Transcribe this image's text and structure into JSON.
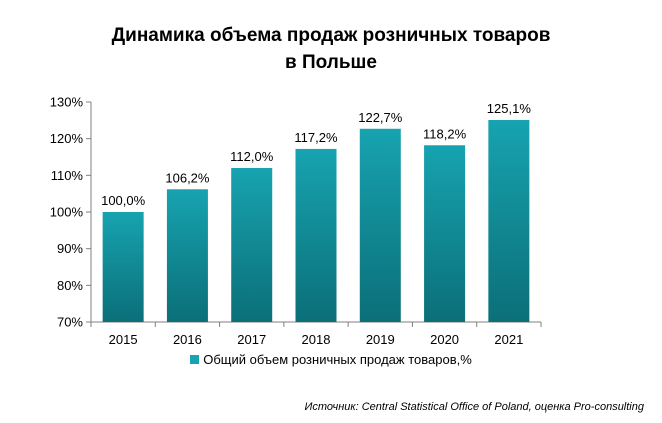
{
  "chart_data": {
    "type": "bar",
    "title_lines": [
      "Динамика объема продаж розничных товаров",
      "в Польше"
    ],
    "categories": [
      "2015",
      "2016",
      "2017",
      "2018",
      "2019",
      "2020",
      "2021"
    ],
    "series": [
      {
        "name": "Общий объем розничных продаж товаров,%",
        "values": [
          100.0,
          106.2,
          112.0,
          117.2,
          122.7,
          118.2,
          125.1
        ],
        "labels": [
          "100,0%",
          "106,2%",
          "112,0%",
          "117,2%",
          "122,7%",
          "118,2%",
          "125,1%"
        ]
      }
    ],
    "ylim": [
      70,
      130
    ],
    "yticks": [
      70,
      80,
      90,
      100,
      110,
      120,
      130
    ],
    "ytick_labels": [
      "70%",
      "80%",
      "90%",
      "100%",
      "110%",
      "120%",
      "130%"
    ],
    "grid": false,
    "legend_position": "bottom",
    "bar_color": "#17a3b0",
    "bar_color_dark": "#0b6f78",
    "source": "Источник: Central Statistical Office of Poland, оценка Pro-consulting"
  }
}
